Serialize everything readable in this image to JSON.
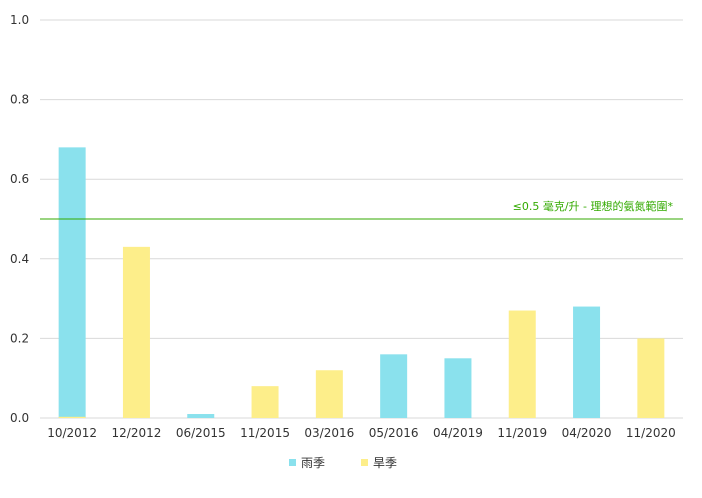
{
  "chart_data": {
    "type": "bar",
    "categories": [
      "10/2012",
      "12/2012",
      "06/2015",
      "11/2015",
      "03/2016",
      "05/2016",
      "04/2019",
      "11/2019",
      "04/2020",
      "11/2020"
    ],
    "series": [
      {
        "name": "雨季",
        "color": "#8ae1ed",
        "values": [
          0.68,
          null,
          0.01,
          null,
          null,
          0.16,
          0.15,
          null,
          0.28,
          null
        ]
      },
      {
        "name": "旱季",
        "color": "#fdee8a",
        "values": [
          0.003,
          0.43,
          null,
          0.08,
          0.12,
          null,
          null,
          0.27,
          null,
          0.2
        ]
      }
    ],
    "ylim": [
      0,
      1.0
    ],
    "yticks": [
      "0.0",
      "0.2",
      "0.4",
      "0.6",
      "0.8",
      "1.0"
    ],
    "grid": true,
    "legend": "bottom",
    "reference_line": {
      "value": 0.5,
      "label": "≤0.5 毫克/升 - 理想的氨氮範圍*",
      "color": "#33aa00"
    }
  }
}
